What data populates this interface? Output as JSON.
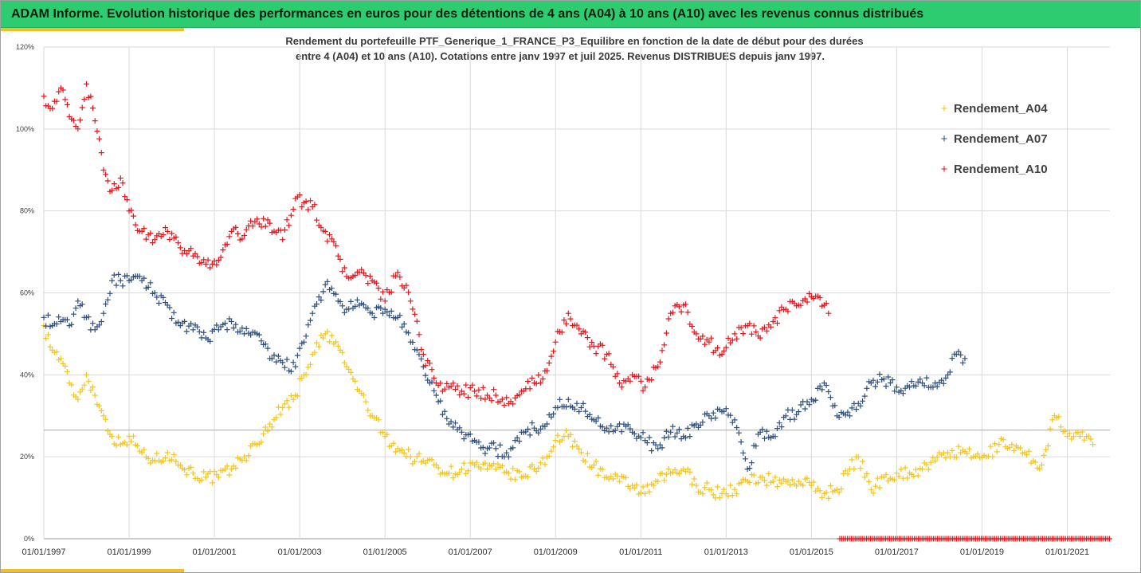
{
  "banner": {
    "title": "ADAM Informe. Evolution historique des performances en euros pour des détentions de 4 ans (A04) à 10 ans (A10) avec les revenus connus distribués"
  },
  "colors": {
    "banner_bg": "#2ecc71",
    "accent": "#f0c02a",
    "A04": "#f5c518",
    "A07": "#2f4f7f",
    "A10": "#e8141c"
  },
  "chart_data": {
    "type": "scatter",
    "subtitle_line1": "Rendement du portefeuille PTF_Generique_1_FRANCE_P3_Equilibre  en fonction de la date de début pour des durées",
    "subtitle_line2": "entre 4 (A04) et 10 ans (A10). Cotations entre janv 1997 et juil 2025. Revenus DISTRIBUES depuis janv 1997.",
    "xlabel": "",
    "ylabel": "",
    "xlim": [
      "1997-01-01",
      "2022-01-01"
    ],
    "ylim": [
      0,
      120
    ],
    "y_tick_labels": [
      "0%",
      "20%",
      "40%",
      "60%",
      "80%",
      "100%",
      "120%"
    ],
    "x_tick_labels": [
      "01/01/1997",
      "01/01/1999",
      "01/01/2001",
      "01/01/2003",
      "01/01/2005",
      "01/01/2007",
      "01/01/2009",
      "01/01/2011",
      "01/01/2013",
      "01/01/2015",
      "01/01/2017",
      "01/01/2019",
      "01/01/2021"
    ],
    "grid": true,
    "legend_position": "right",
    "reference_line_y": 26.5,
    "series": [
      {
        "name": "Rendement_A04",
        "x": [
          1997.0,
          1997.2,
          1997.4,
          1997.6,
          1997.8,
          1998.0,
          1998.2,
          1998.4,
          1998.6,
          1998.8,
          1999.0,
          1999.3,
          1999.6,
          1999.9,
          2000.2,
          2000.5,
          2000.8,
          2001.1,
          2001.4,
          2001.7,
          2002.0,
          2002.3,
          2002.6,
          2002.9,
          2003.1,
          2003.3,
          2003.6,
          2003.9,
          2004.1,
          2004.4,
          2004.7,
          2005.0,
          2005.3,
          2005.6,
          2005.9,
          2006.2,
          2006.5,
          2006.8,
          2007.1,
          2007.4,
          2007.6,
          2007.9,
          2008.2,
          2008.5,
          2008.8,
          2009.0,
          2009.3,
          2009.6,
          2009.9,
          2010.2,
          2010.5,
          2010.8,
          2011.1,
          2011.4,
          2011.7,
          2012.0,
          2012.3,
          2012.6,
          2012.9,
          2013.2,
          2013.5,
          2013.8,
          2014.1,
          2014.4,
          2014.7,
          2015.0,
          2015.3,
          2015.6,
          2015.9,
          2016.1,
          2016.4,
          2016.7,
          2017.0,
          2017.3,
          2017.6,
          2017.9,
          2018.2,
          2018.5,
          2018.8,
          2019.1,
          2019.4,
          2019.7,
          2020.0,
          2020.2,
          2020.4,
          2020.7,
          2021.0,
          2021.3,
          2021.6
        ],
        "values": [
          52,
          46,
          44,
          38,
          34,
          40,
          35,
          30,
          25,
          23,
          25,
          21,
          19,
          21,
          18,
          16,
          15,
          15,
          17,
          20,
          23,
          28,
          32,
          35,
          40,
          45,
          50,
          47,
          42,
          36,
          30,
          25,
          22,
          20,
          19,
          18,
          16,
          17,
          18,
          17,
          17,
          16,
          15,
          17,
          20,
          24,
          25,
          21,
          18,
          15,
          14,
          13,
          11,
          14,
          16,
          17,
          13,
          12,
          11,
          12,
          14,
          15,
          14,
          14,
          14,
          13,
          11,
          12,
          17,
          20,
          12,
          15,
          16,
          16,
          17,
          19,
          21,
          21,
          20,
          20,
          23,
          23,
          21,
          19,
          18,
          30,
          25,
          25,
          23
        ]
      },
      {
        "name": "Rendement_A07",
        "x": [
          1997.0,
          1997.2,
          1997.4,
          1997.6,
          1997.8,
          1998.0,
          1998.2,
          1998.4,
          1998.6,
          1998.8,
          1999.0,
          1999.3,
          1999.6,
          1999.9,
          2000.2,
          2000.5,
          2000.8,
          2001.1,
          2001.4,
          2001.7,
          2002.0,
          2002.3,
          2002.6,
          2002.9,
          2003.1,
          2003.3,
          2003.6,
          2003.9,
          2004.1,
          2004.4,
          2004.7,
          2005.0,
          2005.3,
          2005.6,
          2005.9,
          2006.2,
          2006.5,
          2006.8,
          2007.1,
          2007.4,
          2007.6,
          2007.9,
          2008.2,
          2008.5,
          2008.8,
          2009.0,
          2009.3,
          2009.6,
          2009.9,
          2010.2,
          2010.5,
          2010.8,
          2011.1,
          2011.4,
          2011.7,
          2012.0,
          2012.3,
          2012.6,
          2012.9,
          2013.2,
          2013.5,
          2013.8,
          2014.1,
          2014.4,
          2014.7,
          2015.0,
          2015.3,
          2015.6,
          2015.9,
          2016.1,
          2016.4,
          2016.7,
          2017.0,
          2017.3,
          2017.6,
          2017.9,
          2018.2,
          2018.4,
          2018.6
        ],
        "values": [
          54,
          52,
          53,
          52,
          58,
          54,
          51,
          55,
          63,
          63,
          63,
          63,
          60,
          57,
          52,
          51,
          49,
          51,
          53,
          50,
          50,
          44,
          43,
          42,
          48,
          55,
          62,
          58,
          56,
          57,
          55,
          56,
          54,
          48,
          42,
          35,
          28,
          26,
          24,
          22,
          22,
          20,
          26,
          27,
          28,
          32,
          34,
          32,
          29,
          27,
          28,
          26,
          24,
          22,
          26,
          25,
          28,
          30,
          31,
          29,
          17,
          26,
          25,
          30,
          31,
          34,
          38,
          30,
          30,
          33,
          38,
          39,
          37,
          37,
          38,
          38,
          40,
          45,
          44
        ]
      },
      {
        "name": "Rendement_A10",
        "x": [
          1997.0,
          1997.2,
          1997.4,
          1997.6,
          1997.8,
          1998.0,
          1998.2,
          1998.4,
          1998.6,
          1998.8,
          1999.0,
          1999.3,
          1999.6,
          1999.9,
          2000.2,
          2000.5,
          2000.8,
          2001.1,
          2001.4,
          2001.7,
          2002.0,
          2002.3,
          2002.6,
          2002.9,
          2003.1,
          2003.3,
          2003.6,
          2003.9,
          2004.1,
          2004.4,
          2004.7,
          2005.0,
          2005.3,
          2005.6,
          2005.9,
          2006.2,
          2006.5,
          2006.8,
          2007.1,
          2007.4,
          2007.6,
          2007.9,
          2008.2,
          2008.5,
          2008.8,
          2009.0,
          2009.3,
          2009.6,
          2009.9,
          2010.2,
          2010.5,
          2010.8,
          2011.1,
          2011.4,
          2011.7,
          2012.0,
          2012.3,
          2012.6,
          2012.9,
          2013.2,
          2013.5,
          2013.8,
          2014.1,
          2014.4,
          2014.7,
          2015.0,
          2015.3,
          2015.4
        ],
        "values": [
          108,
          105,
          110,
          103,
          100,
          111,
          102,
          90,
          85,
          88,
          80,
          75,
          73,
          75,
          71,
          69,
          67,
          68,
          75,
          74,
          78,
          77,
          73,
          83,
          82,
          81,
          75,
          69,
          64,
          65,
          63,
          58,
          65,
          58,
          45,
          38,
          37,
          36,
          36,
          35,
          35,
          33,
          36,
          38,
          41,
          48,
          55,
          50,
          47,
          45,
          38,
          40,
          37,
          42,
          55,
          57,
          50,
          48,
          45,
          50,
          52,
          49,
          53,
          56,
          57,
          59,
          57,
          55
        ]
      }
    ],
    "zero_marker_range": [
      "2015-09-01",
      "2022-01-01"
    ]
  }
}
